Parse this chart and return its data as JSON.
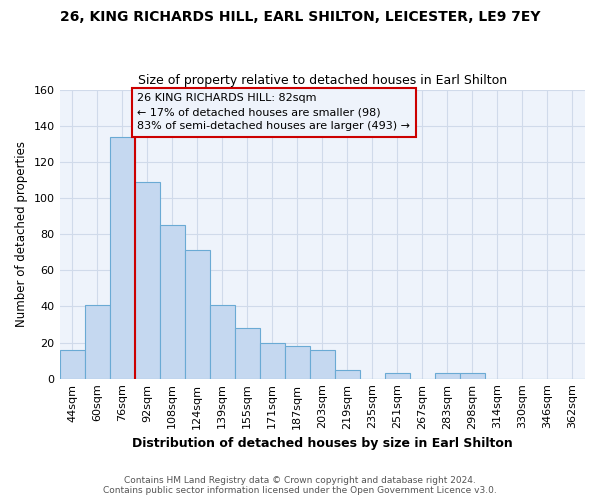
{
  "title": "26, KING RICHARDS HILL, EARL SHILTON, LEICESTER, LE9 7EY",
  "subtitle": "Size of property relative to detached houses in Earl Shilton",
  "xlabel": "Distribution of detached houses by size in Earl Shilton",
  "ylabel": "Number of detached properties",
  "footer_line1": "Contains HM Land Registry data © Crown copyright and database right 2024.",
  "footer_line2": "Contains public sector information licensed under the Open Government Licence v3.0.",
  "bar_labels": [
    "44sqm",
    "60sqm",
    "76sqm",
    "92sqm",
    "108sqm",
    "124sqm",
    "139sqm",
    "155sqm",
    "171sqm",
    "187sqm",
    "203sqm",
    "219sqm",
    "235sqm",
    "251sqm",
    "267sqm",
    "283sqm",
    "298sqm",
    "314sqm",
    "330sqm",
    "346sqm",
    "362sqm"
  ],
  "bar_values": [
    16,
    41,
    134,
    109,
    85,
    71,
    41,
    28,
    20,
    18,
    16,
    5,
    0,
    3,
    0,
    3,
    3,
    0,
    0,
    0,
    0
  ],
  "bar_color": "#c5d8f0",
  "bar_edge_color": "#6aaad4",
  "bg_color": "#ffffff",
  "plot_bg_color": "#eef3fb",
  "grid_color": "#d0daea",
  "property_bin_index": 2,
  "annotation_line1": "26 KING RICHARDS HILL: 82sqm",
  "annotation_line2": "← 17% of detached houses are smaller (98)",
  "annotation_line3": "83% of semi-detached houses are larger (493) →",
  "vline_color": "#cc0000",
  "annotation_box_edge": "#cc0000",
  "ylim": [
    0,
    160
  ],
  "yticks": [
    0,
    20,
    40,
    60,
    80,
    100,
    120,
    140,
    160
  ]
}
